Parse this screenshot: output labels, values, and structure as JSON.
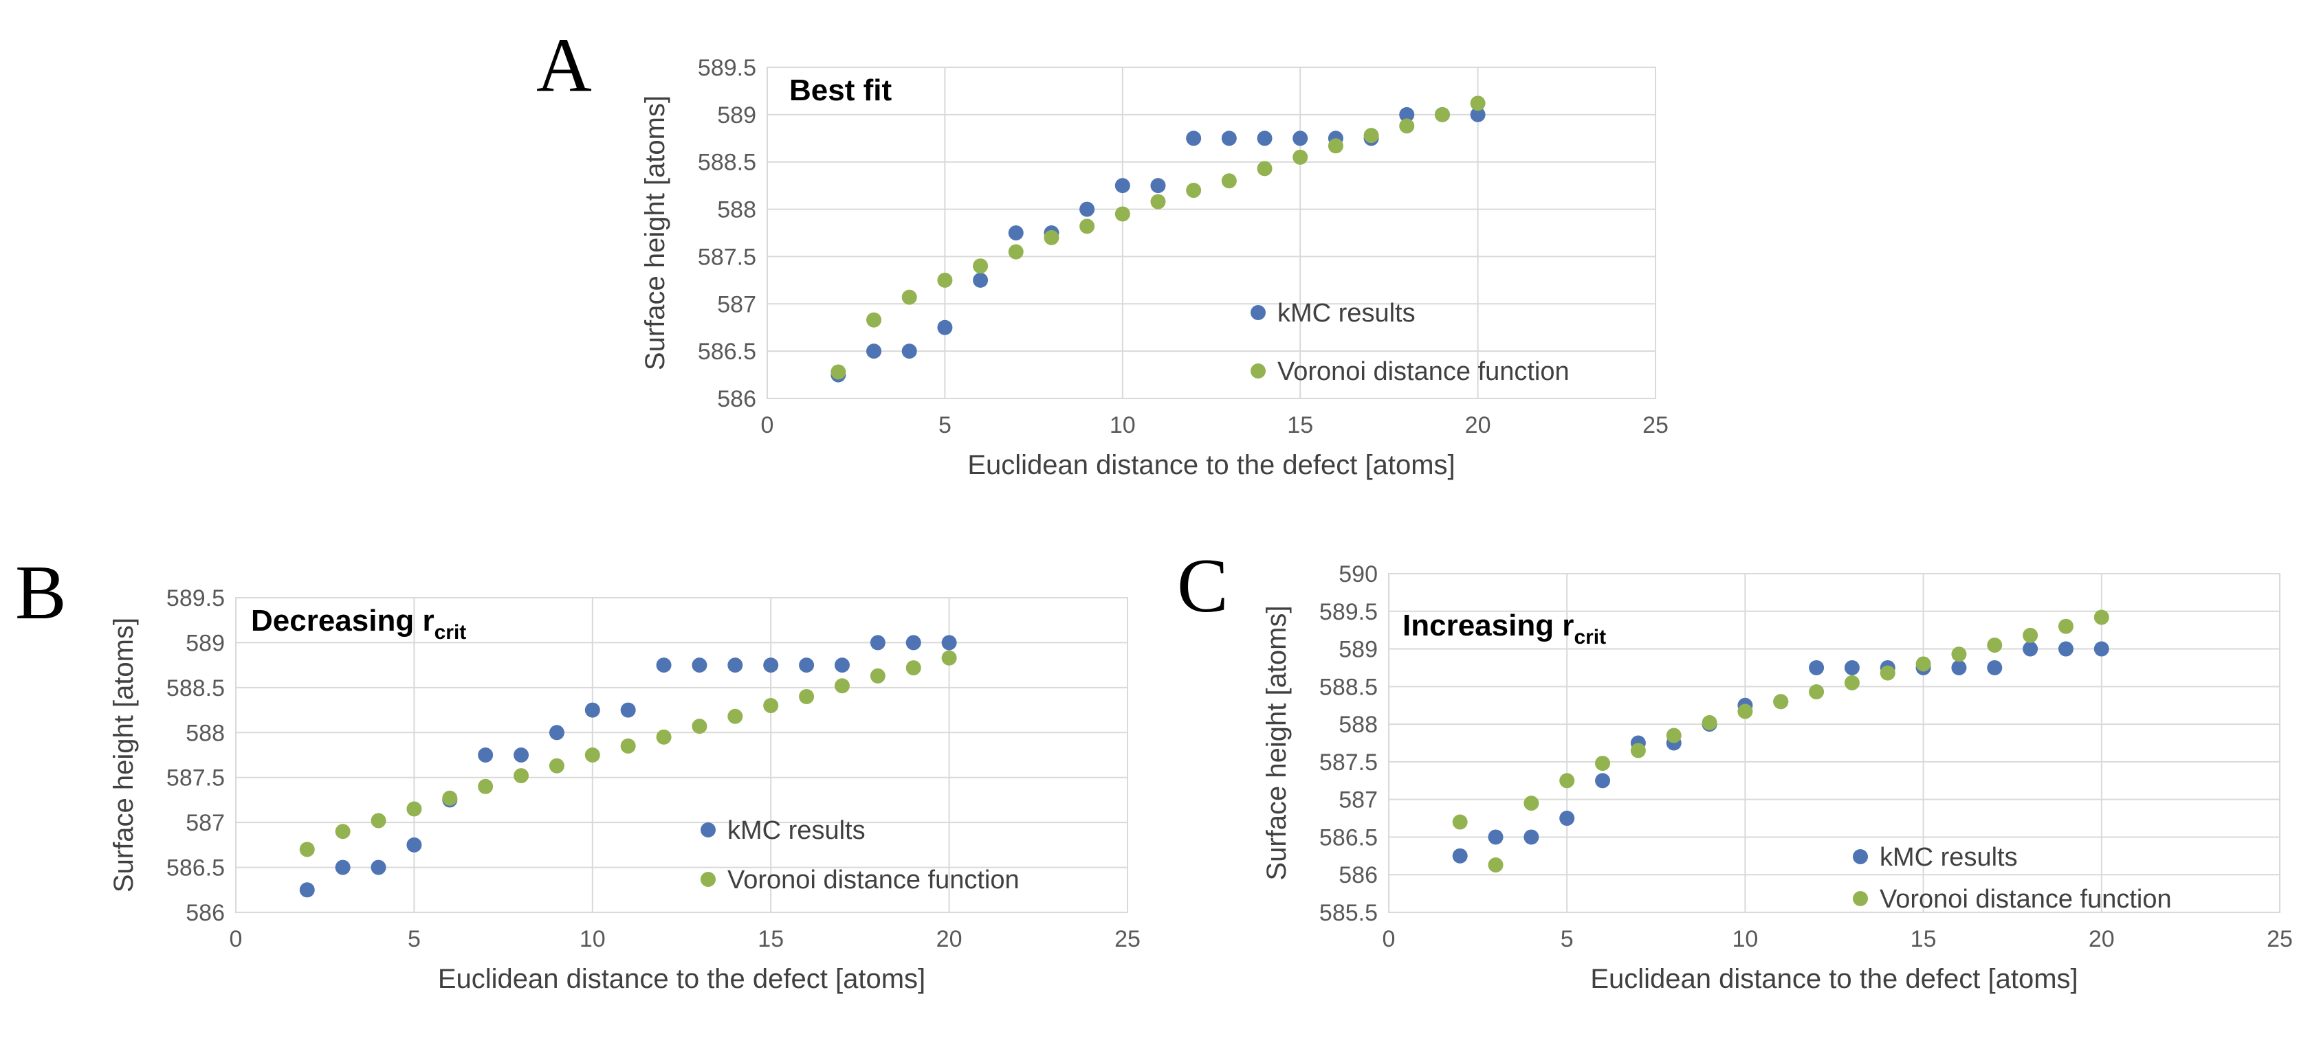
{
  "colors": {
    "kmc": "#4f74b3",
    "voronoi": "#92b350"
  },
  "chart_data": [
    {
      "type": "scatter",
      "panel_label": "A",
      "title": "Best fit",
      "title_sub": "",
      "xlabel": "Euclidean distance to the defect [atoms]",
      "ylabel": "Surface height [atoms]",
      "xlim": [
        0,
        25
      ],
      "ylim": [
        586,
        589.5
      ],
      "x_ticks": [
        0,
        5,
        10,
        15,
        20,
        25
      ],
      "y_ticks": [
        586,
        586.5,
        587,
        587.5,
        588,
        588.5,
        589,
        589.5
      ],
      "x_tick_labels": [
        "0",
        "5",
        "10",
        "15",
        "20",
        "25"
      ],
      "y_tick_labels": [
        "586",
        "586.5",
        "587",
        "587.5",
        "588",
        "588.5",
        "589",
        "589.5"
      ],
      "series": [
        {
          "name": "kMC results",
          "color": "#4f74b3",
          "x": [
            2,
            3,
            4,
            5,
            6,
            7,
            8,
            9,
            10,
            11,
            12,
            13,
            14,
            15,
            16,
            17,
            18,
            19,
            20
          ],
          "y": [
            586.25,
            586.5,
            586.5,
            586.75,
            587.25,
            587.75,
            587.75,
            588.0,
            588.25,
            588.25,
            588.75,
            588.75,
            588.75,
            588.75,
            588.75,
            588.75,
            589.0,
            589.0,
            589.0
          ]
        },
        {
          "name": "Voronoi distance function",
          "color": "#92b350",
          "x": [
            2,
            3,
            4,
            5,
            6,
            7,
            8,
            9,
            10,
            11,
            12,
            13,
            14,
            15,
            16,
            17,
            18,
            19,
            20
          ],
          "y": [
            586.28,
            586.83,
            587.07,
            587.25,
            587.4,
            587.55,
            587.7,
            587.82,
            587.95,
            588.08,
            588.2,
            588.3,
            588.43,
            588.55,
            588.67,
            588.78,
            588.88,
            589.0,
            589.12
          ]
        }
      ]
    },
    {
      "type": "scatter",
      "panel_label": "B",
      "title": "Decreasing r",
      "title_sub": "crit",
      "xlabel": "Euclidean distance to the defect [atoms]",
      "ylabel": "Surface height [atoms]",
      "xlim": [
        0,
        25
      ],
      "ylim": [
        586,
        589.5
      ],
      "x_ticks": [
        0,
        5,
        10,
        15,
        20,
        25
      ],
      "y_ticks": [
        586,
        586.5,
        587,
        587.5,
        588,
        588.5,
        589,
        589.5
      ],
      "x_tick_labels": [
        "0",
        "5",
        "10",
        "15",
        "20",
        "25"
      ],
      "y_tick_labels": [
        "586",
        "586.5",
        "587",
        "587.5",
        "588",
        "588.5",
        "589",
        "589.5"
      ],
      "series": [
        {
          "name": "kMC results",
          "color": "#4f74b3",
          "x": [
            2,
            3,
            4,
            5,
            6,
            7,
            8,
            9,
            10,
            11,
            12,
            13,
            14,
            15,
            16,
            17,
            18,
            19,
            20
          ],
          "y": [
            586.25,
            586.5,
            586.5,
            586.75,
            587.25,
            587.75,
            587.75,
            588.0,
            588.25,
            588.25,
            588.75,
            588.75,
            588.75,
            588.75,
            588.75,
            588.75,
            589.0,
            589.0,
            589.0
          ]
        },
        {
          "name": "Voronoi distance function",
          "color": "#92b350",
          "x": [
            2,
            3,
            4,
            5,
            6,
            7,
            8,
            9,
            10,
            11,
            12,
            13,
            14,
            15,
            16,
            17,
            18,
            19,
            20
          ],
          "y": [
            586.7,
            586.9,
            587.02,
            587.15,
            587.27,
            587.4,
            587.52,
            587.63,
            587.75,
            587.85,
            587.95,
            588.07,
            588.18,
            588.3,
            588.4,
            588.52,
            588.63,
            588.72,
            588.83
          ]
        }
      ]
    },
    {
      "type": "scatter",
      "panel_label": "C",
      "title": "Increasing r",
      "title_sub": "crit",
      "xlabel": "Euclidean distance to the defect [atoms]",
      "ylabel": "Surface height [atoms]",
      "xlim": [
        0,
        25
      ],
      "ylim": [
        585.5,
        590
      ],
      "x_ticks": [
        0,
        5,
        10,
        15,
        20,
        25
      ],
      "y_ticks": [
        585.5,
        586,
        586.5,
        587,
        587.5,
        588,
        588.5,
        589,
        589.5,
        590
      ],
      "x_tick_labels": [
        "0",
        "5",
        "10",
        "15",
        "20",
        "25"
      ],
      "y_tick_labels": [
        "585.5",
        "586",
        "586.5",
        "587",
        "587.5",
        "588",
        "588.5",
        "589",
        "589.5",
        "590"
      ],
      "series": [
        {
          "name": "kMC results",
          "color": "#4f74b3",
          "x": [
            2,
            3,
            4,
            5,
            6,
            7,
            8,
            9,
            10,
            11,
            12,
            13,
            14,
            15,
            16,
            17,
            18,
            19,
            20
          ],
          "y": [
            586.25,
            586.5,
            586.5,
            586.75,
            587.25,
            587.75,
            587.75,
            588.0,
            588.25,
            588.3,
            588.75,
            588.75,
            588.75,
            588.75,
            588.75,
            588.75,
            589.0,
            589.0,
            589.0
          ]
        },
        {
          "name": "Voronoi distance function",
          "color": "#92b350",
          "x": [
            2,
            3,
            4,
            5,
            6,
            7,
            8,
            9,
            10,
            11,
            12,
            13,
            14,
            15,
            16,
            17,
            18,
            19,
            20
          ],
          "y": [
            586.7,
            586.13,
            586.95,
            587.25,
            587.48,
            587.65,
            587.85,
            588.02,
            588.17,
            588.3,
            588.43,
            588.55,
            588.68,
            588.8,
            588.93,
            589.05,
            589.18,
            589.3,
            589.42
          ]
        }
      ]
    }
  ]
}
